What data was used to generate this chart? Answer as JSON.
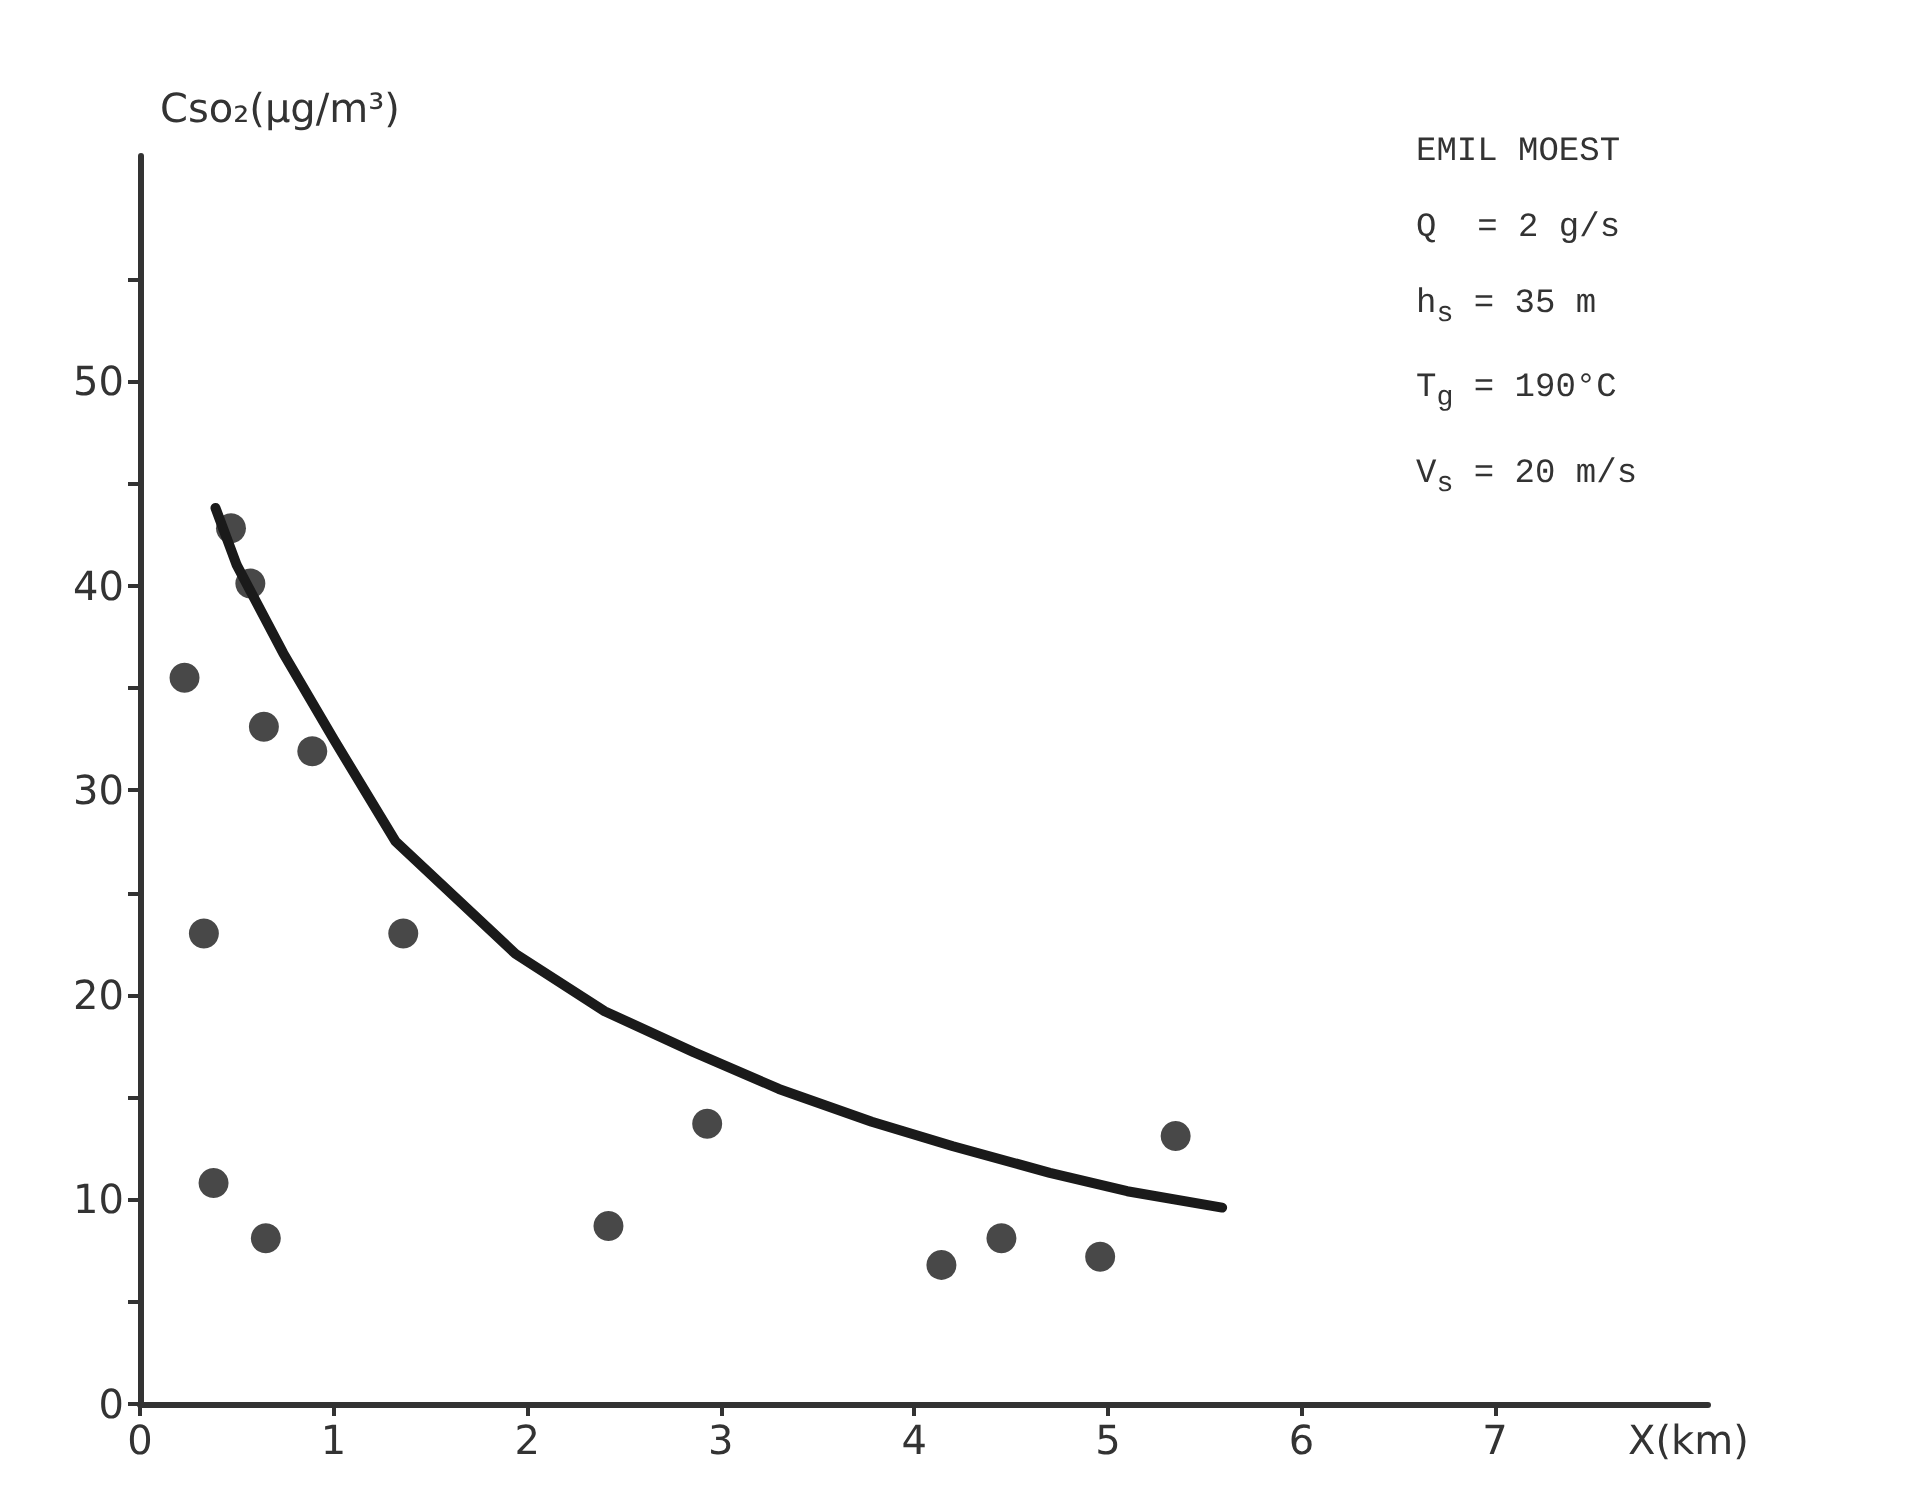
{
  "chart_data": {
    "type": "scatter",
    "xlabel": "X(km)",
    "ylabel": "Cso₂(μg/m³)",
    "annotations": [
      "EMIL MOEST",
      "Q  = 2 g/s",
      "h$_{s}$ = 35 m",
      "T$_{g}$ = 190°C",
      "V$_{s}$ = 20 m/s"
    ],
    "series": [
      {
        "color": "#1a1a1a",
        "marker": "circle",
        "x": [
          0.23,
          0.33,
          0.38,
          0.47,
          0.57,
          0.64,
          0.65,
          0.89,
          1.36,
          2.42,
          2.93,
          4.14,
          4.45,
          4.96,
          5.35
        ],
        "values": [
          35.5,
          23.0,
          10.8,
          42.8,
          40.1,
          33.1,
          8.1,
          31.9,
          23.0,
          8.7,
          13.7,
          6.8,
          8.1,
          7.2,
          13.1
        ]
      },
      {
        "type": "line",
        "color": "#1a1a1a",
        "marker": "none",
        "line_style": "solid",
        "x": [
          0.39,
          0.5,
          0.74,
          1.0,
          1.32,
          1.94,
          2.4,
          2.86,
          3.3,
          3.78,
          4.2,
          4.7,
          5.1,
          5.59
        ],
        "values": [
          43.8,
          41.0,
          36.7,
          32.5,
          27.5,
          22.0,
          19.2,
          17.2,
          15.4,
          13.8,
          12.6,
          11.3,
          10.4,
          9.6
        ]
      }
    ],
    "xlim": [
      0,
      8.1
    ],
    "xticks": [
      0,
      1,
      2,
      3,
      4,
      5,
      6,
      7
    ],
    "ylim": [
      0,
      61
    ],
    "yticks": [
      0,
      {
        "value": 5,
        "label": null
      },
      10,
      {
        "value": 15,
        "label": null
      },
      20,
      {
        "value": 25,
        "label": null
      },
      30,
      {
        "value": 35,
        "label": null
      },
      40,
      {
        "value": 45,
        "label": null
      },
      50,
      {
        "value": 55,
        "label": null
      }
    ],
    "grid": false
  }
}
